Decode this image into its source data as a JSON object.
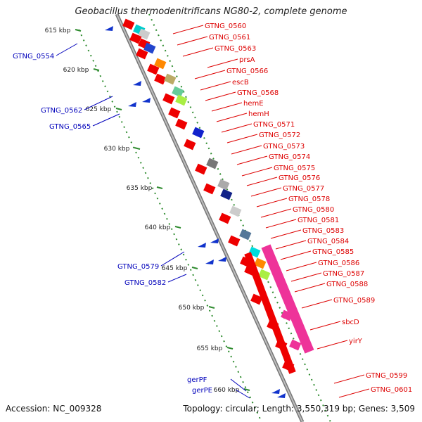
{
  "title": "Geobacillus thermodenitrificans NG80-2, complete genome",
  "footer": {
    "accession": "Accession: NC_009328",
    "topology": "Topology: circular; Length: 3,550,319 bp; Genes: 3,509"
  },
  "colors": {
    "plus_strand_label": "#dd0000",
    "minus_strand_label": "#0000bb",
    "backbone": "#8a8a8a",
    "kbp_ticks": "#2e8b2e",
    "feature_red": "#ee0000",
    "feature_pink": "#ee3399"
  },
  "kbp_ticks": [
    {
      "label": "615 kbp"
    },
    {
      "label": "620 kbp"
    },
    {
      "label": "625 kbp"
    },
    {
      "label": "630 kbp"
    },
    {
      "label": "635 kbp"
    },
    {
      "label": "640 kbp"
    },
    {
      "label": "645 kbp"
    },
    {
      "label": "650 kbp"
    },
    {
      "label": "655 kbp"
    },
    {
      "label": "660 kbp"
    }
  ],
  "right_labels": [
    "GTNG_0560",
    "GTNG_0561",
    "GTNG_0563",
    "prsA",
    "GTNG_0566",
    "escB",
    "GTNG_0568",
    "hemE",
    "hemH",
    "GTNG_0571",
    "GTNG_0572",
    "GTNG_0573",
    "GTNG_0574",
    "GTNG_0575",
    "GTNG_0576",
    "GTNG_0577",
    "GTNG_0578",
    "GTNG_0580",
    "GTNG_0581",
    "GTNG_0583",
    "GTNG_0584",
    "GTNG_0585",
    "GTNG_0586",
    "GTNG_0587",
    "GTNG_0588",
    "GTNG_0589",
    "sbcD",
    "yirY",
    "GTNG_0599",
    "GTNG_0601"
  ],
  "left_labels": [
    "GTNG_0554",
    "GTNG_0562",
    "GTNG_0565",
    "GTNG_0579",
    "GTNG_0582",
    "gerPF",
    "gerPE"
  ]
}
